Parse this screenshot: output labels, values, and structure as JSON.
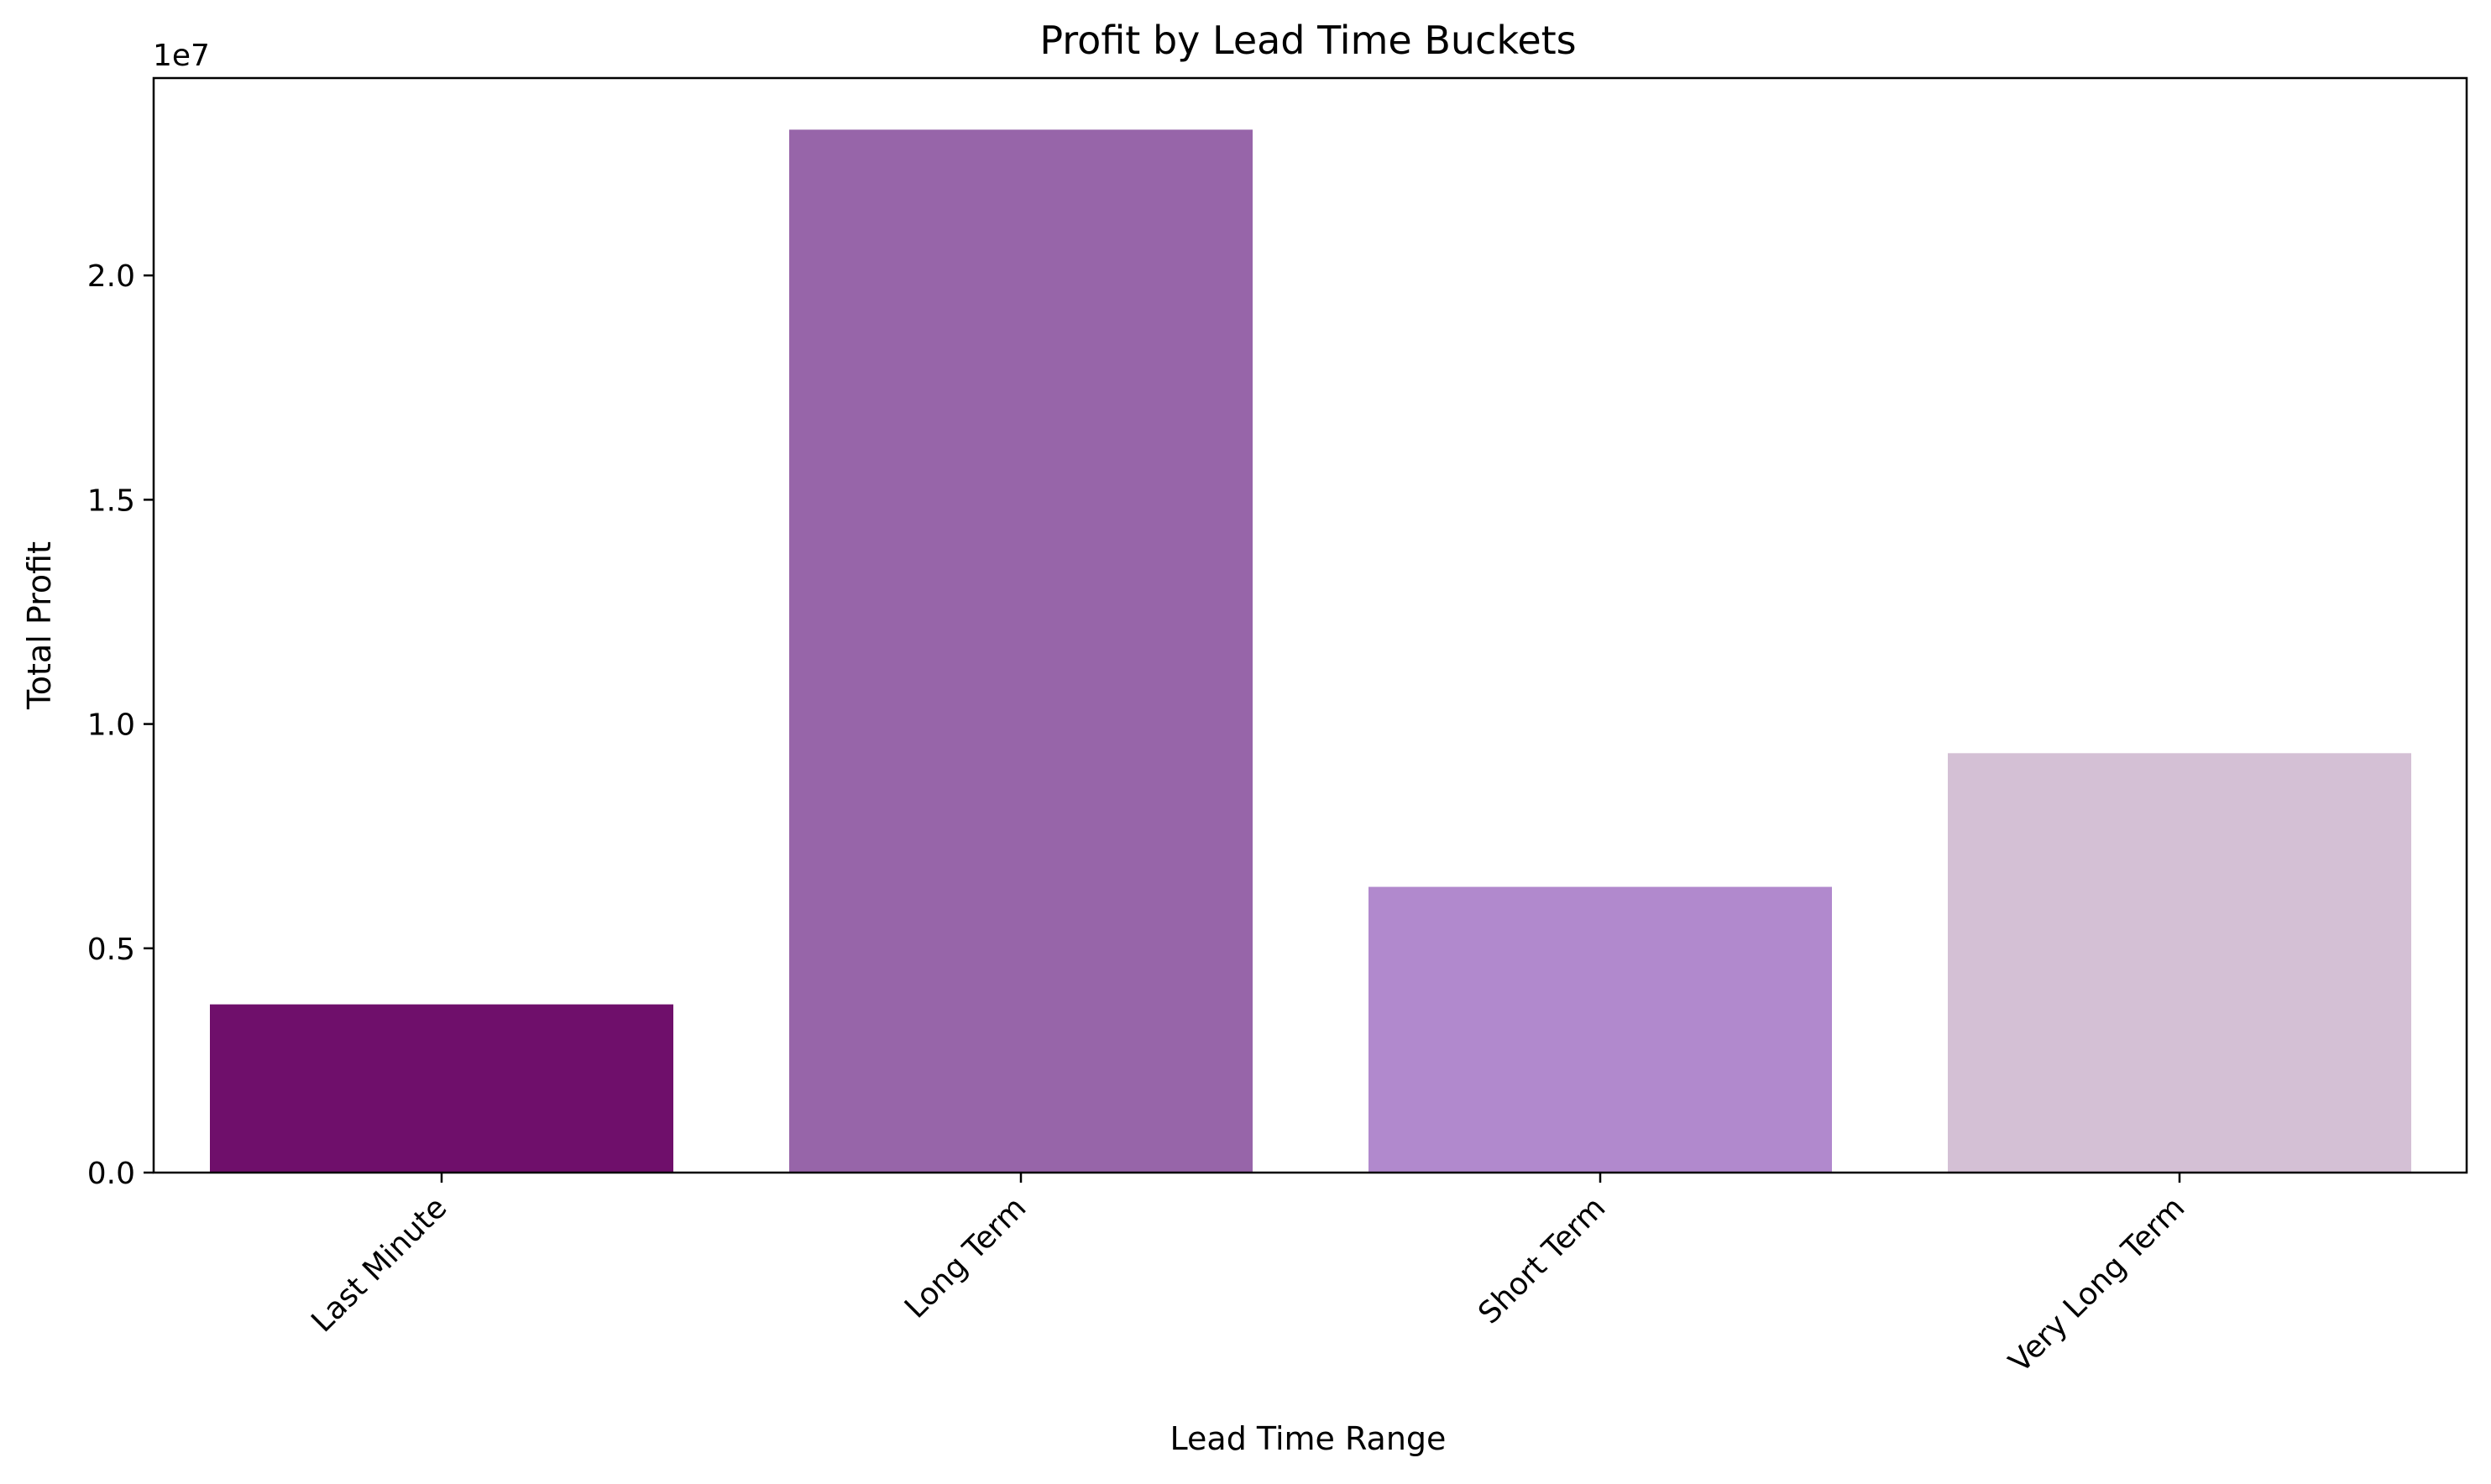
{
  "chart_data": {
    "type": "bar",
    "title": "Profit by Lead Time Buckets",
    "xlabel": "Lead Time Range",
    "ylabel": "Total Profit",
    "y_multiplier_label": "1e7",
    "y_multiplier": 10000000,
    "categories": [
      "Last Minute",
      "Long Term",
      "Short Term",
      "Very Long Term"
    ],
    "values": [
      3750000,
      23250000,
      6370000,
      9350000
    ],
    "colors": [
      "#6f0f6b",
      "#9765a9",
      "#b189cd",
      "#d4c0d5"
    ],
    "ylim": [
      0,
      24400000
    ],
    "yticks": [
      0,
      5000000,
      10000000,
      15000000,
      20000000
    ],
    "ytick_labels": [
      "0.0",
      "0.5",
      "1.0",
      "1.5",
      "2.0"
    ],
    "grid": false,
    "legend": "none"
  }
}
